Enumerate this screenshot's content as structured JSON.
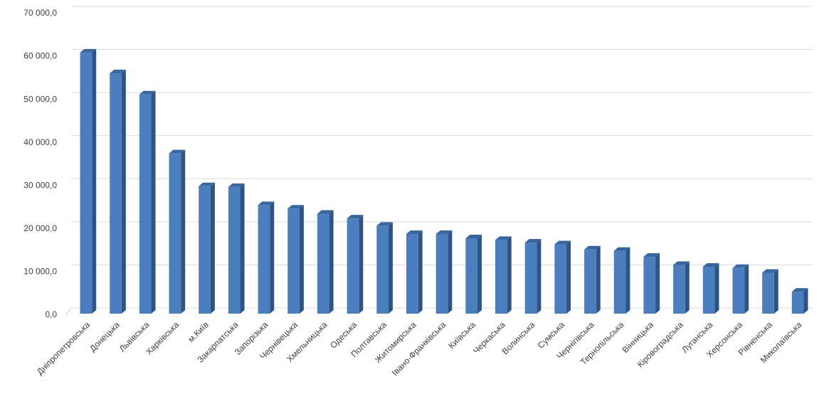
{
  "chart_data": {
    "type": "bar",
    "color": "#4a7ebf",
    "grid": true,
    "categories": [
      "Дніпропетровська",
      "Донецька",
      "Львівська",
      "Харківська",
      "м.Київ",
      "Закарпатська",
      "Запорізька",
      "Чернівецька",
      "Хмельницька",
      "Одеська",
      "Полтавська",
      "Житомирська",
      "Івано-Франківська",
      "Київська",
      "Черкаська",
      "Волинська",
      "Сумська",
      "Чернігівська",
      "Тернопільська",
      "Вінницька",
      "Кіровоградська",
      "Луганська",
      "Херсонська",
      "Рівненська",
      "Миколаївська"
    ],
    "values": [
      60600,
      55800,
      50900,
      37200,
      29600,
      29400,
      25200,
      24400,
      23200,
      22100,
      20400,
      18500,
      18500,
      17500,
      17100,
      16500,
      16100,
      14900,
      14600,
      13200,
      11300,
      10900,
      10600,
      9500,
      5100
    ],
    "ylim": [
      0,
      70000
    ],
    "yticks": [
      {
        "value": 0,
        "label": "0,0"
      },
      {
        "value": 10000,
        "label": "10 000,0"
      },
      {
        "value": 20000,
        "label": "20 000,0"
      },
      {
        "value": 30000,
        "label": "30 000,0"
      },
      {
        "value": 40000,
        "label": "40 000,0"
      },
      {
        "value": 50000,
        "label": "50 000,0"
      },
      {
        "value": 60000,
        "label": "60 000,0"
      },
      {
        "value": 70000,
        "label": "70 000,0"
      }
    ]
  }
}
